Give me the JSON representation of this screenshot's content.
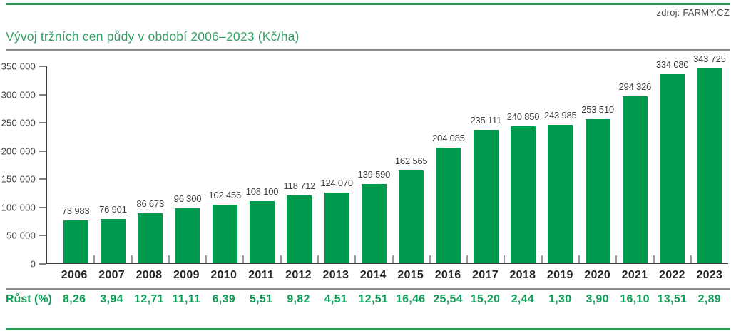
{
  "header": {
    "source": "zdroj: FARMY.CZ",
    "title": "Vývoj tržních cen půdy v období 2006–2023 (Kč/ha)"
  },
  "chart_data": {
    "type": "bar",
    "title": "Vývoj tržních cen půdy v období 2006–2023 (Kč/ha)",
    "xlabel": "",
    "ylabel": "Kč/ha",
    "ylim": [
      0,
      350000
    ],
    "ytick_interval": 50000,
    "ytick_labels": [
      "0",
      "50 000",
      "100 000",
      "150 000",
      "200 000",
      "250 000",
      "300 000",
      "350 000"
    ],
    "grid": false,
    "legend": false,
    "bar_color": "#009a4e",
    "categories": [
      "2006",
      "2007",
      "2008",
      "2009",
      "2010",
      "2011",
      "2012",
      "2013",
      "2014",
      "2015",
      "2016",
      "2017",
      "2018",
      "2019",
      "2020",
      "2021",
      "2022",
      "2023"
    ],
    "values": [
      73983,
      76901,
      86673,
      96300,
      102456,
      108100,
      118712,
      124070,
      139590,
      162565,
      204085,
      235111,
      240850,
      243985,
      253510,
      294326,
      334080,
      343725
    ],
    "value_labels": [
      "73 983",
      "76 901",
      "86 673",
      "96 300",
      "102 456",
      "108 100",
      "118 712",
      "124 070",
      "139 590",
      "162 565",
      "204 085",
      "235 111",
      "240 850",
      "243 985",
      "253 510",
      "294 326",
      "334 080",
      "343 725"
    ],
    "growth_row_label": "Růst (%)",
    "growth_values": [
      "8,26",
      "3,94",
      "12,71",
      "11,11",
      "6,39",
      "5,51",
      "9,82",
      "4,51",
      "12,51",
      "16,46",
      "25,54",
      "15,20",
      "2,44",
      "1,30",
      "3,90",
      "16,10",
      "13,51",
      "2,89"
    ]
  },
  "colors": {
    "bar": "#009a4e",
    "title_green": "#33a265",
    "growth_green": "#0b9e55",
    "rule_green": "#2d9b58",
    "rule_gray": "#8c8c8c",
    "axis_dark": "#3d3d3c",
    "label_gray": "#3f3f3e",
    "source_gray": "#4d4d4f"
  }
}
